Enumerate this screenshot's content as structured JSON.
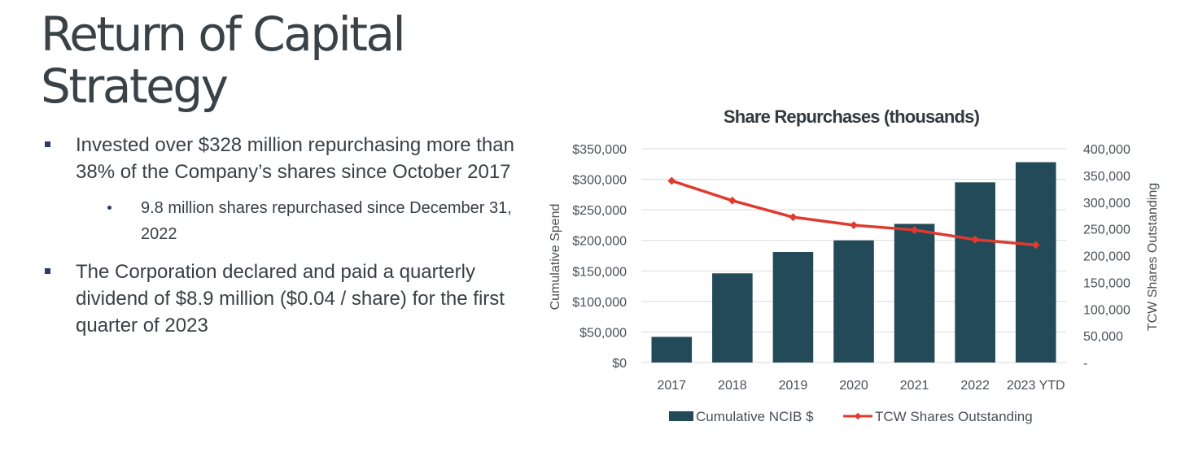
{
  "slide": {
    "title_line1": "Return of Capital",
    "title_line2": "Strategy",
    "bullets": [
      "Invested over $328 million repurchasing more than 38% of the Company’s shares since October 2017",
      "The Corporation declared and paid a quarterly dividend of $8.9 million ($0.04 / share) for the first quarter of 2023"
    ],
    "sub_bullets": [
      "9.8 million shares repurchased since December 31, 2022"
    ]
  },
  "colors": {
    "bar": "#234a58",
    "line": "#e03a2f",
    "grid": "#d9d9d9",
    "bullet_marker": "#2d3a6b"
  },
  "chart_data": {
    "type": "bar",
    "title": "Share Repurchases (thousands)",
    "categories": [
      "2017",
      "2018",
      "2019",
      "2020",
      "2021",
      "2022",
      "2023 YTD"
    ],
    "series": [
      {
        "name": "Cumulative NCIB $",
        "type": "bar",
        "axis": "left",
        "values": [
          42000,
          146000,
          181000,
          200000,
          227000,
          295000,
          328000
        ]
      },
      {
        "name": "TCW Shares Outstanding",
        "type": "line",
        "axis": "right",
        "values": [
          340000,
          303000,
          272000,
          257000,
          248000,
          230000,
          220000
        ]
      }
    ],
    "ylabel": "Cumulative Spend",
    "y2label": "TCW Shares Outstanding",
    "ylim": [
      0,
      350000
    ],
    "y2lim": [
      0,
      400000
    ],
    "yticks": [
      "$0",
      "$50,000",
      "$100,000",
      "$150,000",
      "$200,000",
      "$250,000",
      "$300,000",
      "$350,000"
    ],
    "y2ticks": [
      "-",
      "50,000",
      "100,000",
      "150,000",
      "200,000",
      "250,000",
      "300,000",
      "350,000",
      "400,000"
    ],
    "grid": true,
    "legend_position": "bottom"
  }
}
